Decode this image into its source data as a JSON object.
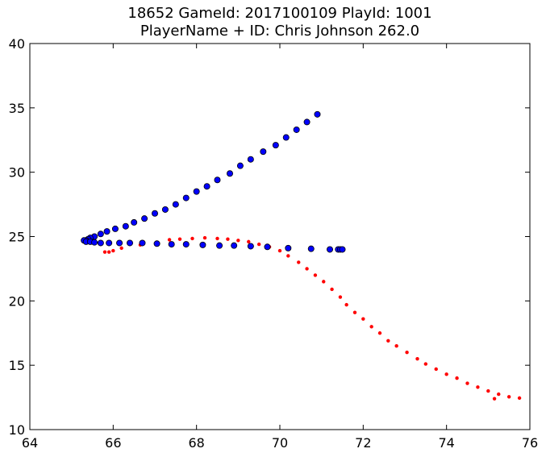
{
  "chart_data": {
    "type": "scatter",
    "title_lines": [
      "18652 GameId: 2017100109 PlayId: 1001",
      "PlayerName + ID: Chris Johnson 262.0"
    ],
    "xlabel": "",
    "ylabel": "",
    "xlim": [
      64,
      76
    ],
    "ylim": [
      10,
      40
    ],
    "x_ticks": [
      "64",
      "66",
      "68",
      "70",
      "72",
      "74",
      "76"
    ],
    "y_ticks": [
      "10",
      "15",
      "20",
      "25",
      "30",
      "35",
      "40"
    ],
    "grid": false,
    "series": [
      {
        "marker": "circle",
        "color": "#0000ff",
        "edge_color": "#000000",
        "points": [
          [
            70.9,
            34.5
          ],
          [
            70.65,
            33.9
          ],
          [
            70.4,
            33.3
          ],
          [
            70.15,
            32.7
          ],
          [
            69.9,
            32.1
          ],
          [
            69.6,
            31.6
          ],
          [
            69.3,
            31.0
          ],
          [
            69.05,
            30.5
          ],
          [
            68.8,
            29.9
          ],
          [
            68.5,
            29.4
          ],
          [
            68.25,
            28.9
          ],
          [
            68.0,
            28.5
          ],
          [
            67.75,
            28.0
          ],
          [
            67.5,
            27.5
          ],
          [
            67.25,
            27.1
          ],
          [
            67.0,
            26.8
          ],
          [
            66.75,
            26.4
          ],
          [
            66.5,
            26.1
          ],
          [
            66.3,
            25.8
          ],
          [
            66.05,
            25.6
          ],
          [
            65.85,
            25.4
          ],
          [
            65.7,
            25.2
          ],
          [
            65.55,
            25.0
          ],
          [
            65.45,
            24.9
          ],
          [
            65.4,
            24.8
          ],
          [
            65.35,
            24.7
          ],
          [
            65.3,
            24.7
          ],
          [
            65.35,
            24.6
          ],
          [
            65.45,
            24.6
          ],
          [
            65.55,
            24.55
          ],
          [
            65.7,
            24.5
          ],
          [
            65.9,
            24.5
          ],
          [
            66.15,
            24.5
          ],
          [
            66.4,
            24.5
          ],
          [
            66.7,
            24.5
          ],
          [
            67.05,
            24.45
          ],
          [
            67.4,
            24.4
          ],
          [
            67.75,
            24.4
          ],
          [
            68.15,
            24.35
          ],
          [
            68.55,
            24.3
          ],
          [
            68.9,
            24.3
          ],
          [
            69.3,
            24.25
          ],
          [
            69.7,
            24.2
          ],
          [
            70.2,
            24.1
          ],
          [
            70.75,
            24.05
          ],
          [
            71.2,
            24.0
          ],
          [
            71.4,
            24.0
          ],
          [
            71.45,
            24.0
          ],
          [
            71.5,
            24.0
          ]
        ]
      },
      {
        "marker": "dot",
        "color": "#ff0000",
        "points": [
          [
            65.8,
            23.8
          ],
          [
            65.9,
            23.8
          ],
          [
            66.0,
            23.9
          ],
          [
            66.2,
            24.1
          ],
          [
            66.65,
            24.35
          ],
          [
            67.35,
            24.75
          ],
          [
            67.6,
            24.8
          ],
          [
            67.9,
            24.85
          ],
          [
            68.2,
            24.9
          ],
          [
            68.5,
            24.85
          ],
          [
            68.75,
            24.8
          ],
          [
            69.0,
            24.7
          ],
          [
            69.25,
            24.6
          ],
          [
            69.5,
            24.4
          ],
          [
            69.75,
            24.2
          ],
          [
            70.0,
            23.9
          ],
          [
            70.2,
            23.5
          ],
          [
            70.45,
            23.0
          ],
          [
            70.65,
            22.5
          ],
          [
            70.85,
            22.0
          ],
          [
            71.05,
            21.5
          ],
          [
            71.25,
            20.9
          ],
          [
            71.45,
            20.3
          ],
          [
            71.6,
            19.7
          ],
          [
            71.8,
            19.1
          ],
          [
            72.0,
            18.6
          ],
          [
            72.2,
            18.0
          ],
          [
            72.4,
            17.5
          ],
          [
            72.6,
            16.9
          ],
          [
            72.8,
            16.5
          ],
          [
            73.05,
            16.0
          ],
          [
            73.3,
            15.5
          ],
          [
            73.5,
            15.1
          ],
          [
            73.75,
            14.7
          ],
          [
            74.0,
            14.3
          ],
          [
            74.25,
            14.0
          ],
          [
            74.5,
            13.6
          ],
          [
            74.75,
            13.3
          ],
          [
            75.0,
            13.0
          ],
          [
            75.25,
            12.75
          ],
          [
            75.5,
            12.55
          ],
          [
            75.75,
            12.45
          ],
          [
            75.15,
            12.4
          ]
        ]
      }
    ]
  }
}
